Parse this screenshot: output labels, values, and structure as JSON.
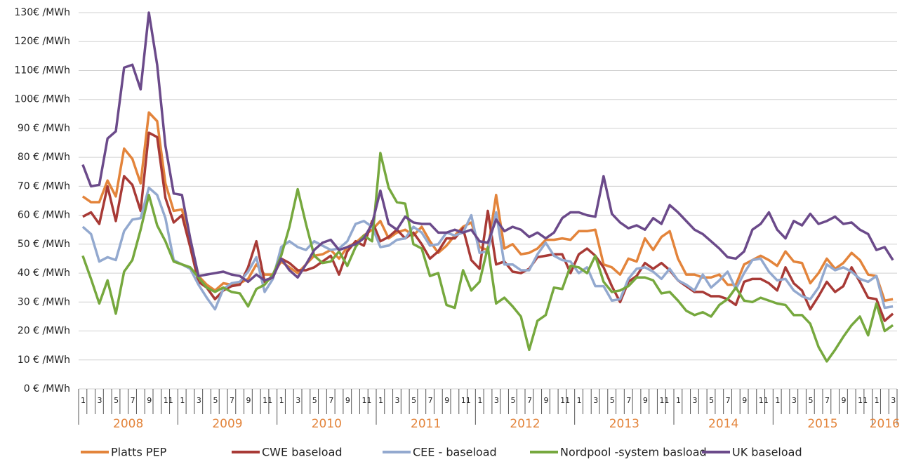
{
  "chart_data": {
    "type": "line",
    "categories": [
      "1",
      null,
      "3",
      null,
      "5",
      null,
      "7",
      null,
      "9",
      null,
      "11",
      null,
      "1",
      null,
      "3",
      null,
      "5",
      null,
      "7",
      null,
      "9",
      null,
      "11",
      null,
      "1",
      null,
      "3",
      null,
      "5",
      null,
      "7",
      null,
      "9",
      null,
      "11",
      null,
      "1",
      null,
      "3",
      null,
      "5",
      null,
      "7",
      null,
      "9",
      null,
      "11",
      null,
      "1",
      null,
      "3",
      null,
      "5",
      null,
      "7",
      null,
      "9",
      null,
      "11",
      null,
      "1",
      null,
      "3",
      null,
      "5",
      null,
      "7",
      null,
      "9",
      null,
      "11",
      null,
      "1",
      null,
      "3",
      null,
      "5",
      null,
      "7",
      null,
      "9",
      null,
      "11",
      null,
      "1",
      null,
      "3",
      null,
      "5",
      null,
      "7",
      null,
      "9",
      null,
      "11",
      null,
      "1",
      null,
      "3"
    ],
    "years": [
      "2008",
      "2009",
      "2010",
      "2011",
      "2012",
      "2013",
      "2014",
      "2015",
      "2016"
    ],
    "ylim": [
      0,
      130
    ],
    "yticks": [
      {
        "value": 0,
        "label": "0 € /MWh"
      },
      {
        "value": 10,
        "label": "10 € /MWh"
      },
      {
        "value": 20,
        "label": "20 € /MWh"
      },
      {
        "value": 30,
        "label": "30 € /MWh"
      },
      {
        "value": 40,
        "label": "40 € /MWh"
      },
      {
        "value": 50,
        "label": "50 € /MWh"
      },
      {
        "value": 60,
        "label": "60 € /MWh"
      },
      {
        "value": 70,
        "label": "70 € /MWh"
      },
      {
        "value": 80,
        "label": "80 € /MWh"
      },
      {
        "value": 90,
        "label": "90 € /MWh"
      },
      {
        "value": 100,
        "label": "100€ /MWh"
      },
      {
        "value": 110,
        "label": "110€ /MWh"
      },
      {
        "value": 120,
        "label": "120€ /MWh"
      },
      {
        "value": 130,
        "label": "130€ /MWh"
      }
    ],
    "grid": true,
    "legend": "bottom",
    "series": [
      {
        "name": "Platts PEP",
        "color": "#e3843b",
        "values": [
          66.5,
          64.5,
          64.5,
          72,
          66.5,
          83,
          79.5,
          71,
          95.5,
          92.5,
          71,
          61.5,
          62,
          51,
          39,
          36,
          34,
          36.5,
          36,
          36.5,
          38,
          43,
          39.5,
          39.5,
          44,
          42,
          40,
          43,
          46,
          46.5,
          48,
          45,
          49,
          50.5,
          53,
          55,
          58,
          52,
          54,
          55,
          53,
          56,
          51,
          47,
          49.5,
          53,
          56,
          57.5,
          49,
          48,
          67,
          48.5,
          50,
          46.5,
          47,
          48.5,
          51.5,
          51.5,
          52,
          51.5,
          54.5,
          54.5,
          55,
          43,
          42,
          39.5,
          45,
          44,
          52,
          48,
          52.5,
          54.5,
          45,
          39.5,
          39.5,
          38.5,
          38.5,
          39.5,
          36,
          36,
          43,
          44.5,
          46,
          44.5,
          42.5,
          47.5,
          44,
          43.5,
          36.5,
          40,
          45,
          41.5,
          43.5,
          47,
          44.5,
          39.5,
          39,
          30.5,
          31
        ]
      },
      {
        "name": "CWE baseload",
        "color": "#a83a36",
        "values": [
          59.5,
          61,
          57,
          70,
          58,
          73.5,
          70.5,
          61.5,
          88.5,
          87,
          66,
          57.5,
          60,
          49,
          37,
          35,
          31,
          34,
          35.5,
          36,
          42,
          51,
          37,
          38.5,
          45,
          43.5,
          41,
          41,
          42,
          44,
          46,
          39.5,
          47.5,
          51,
          49.5,
          58,
          51,
          52.5,
          55,
          52,
          54,
          50,
          45,
          47.5,
          52,
          52,
          55.5,
          44.5,
          41.5,
          61.5,
          43,
          44,
          40.5,
          40,
          41.5,
          45.5,
          46,
          46.5,
          46.5,
          40,
          46.5,
          48.5,
          46,
          42,
          35.5,
          30,
          37,
          39,
          43.5,
          41.5,
          43.5,
          41,
          37.5,
          35.5,
          33.5,
          33.5,
          32,
          32,
          31,
          29,
          37,
          38,
          38,
          36.5,
          34,
          42,
          36.5,
          34,
          27.5,
          32,
          37,
          33.5,
          35.5,
          42,
          37,
          31.5,
          31,
          23.5,
          26
        ]
      },
      {
        "name": "CEE - baseload",
        "color": "#93a9cf",
        "values": [
          56,
          53.5,
          44,
          45.5,
          44.5,
          54.5,
          58.5,
          59,
          69.5,
          67,
          59,
          44.5,
          43,
          41.5,
          36,
          31.5,
          27.5,
          34.5,
          36.5,
          37,
          40.5,
          45.5,
          33.5,
          38,
          49,
          51,
          49,
          48,
          51,
          49.5,
          48,
          48.5,
          51,
          57,
          58,
          56,
          49,
          49.5,
          51.5,
          52,
          56,
          54,
          49.5,
          50,
          54,
          53,
          54,
          60,
          47,
          47.5,
          61,
          43,
          43,
          41,
          41,
          46.5,
          50.5,
          46,
          44.5,
          44,
          40,
          42,
          35.5,
          35.5,
          30.5,
          31,
          38,
          41.5,
          42,
          40.5,
          38,
          41.5,
          37.5,
          36,
          34,
          39.5,
          35,
          37.5,
          40.5,
          34.5,
          40,
          44.5,
          45,
          40.5,
          37.5,
          38,
          34,
          32,
          31,
          35,
          43,
          41,
          42,
          40.5,
          38,
          37,
          39,
          28,
          28.5
        ]
      },
      {
        "name": "Nordpool -system basload",
        "color": "#76a83e",
        "values": [
          46,
          38,
          29.5,
          37.5,
          26,
          40.5,
          44.5,
          55,
          67,
          56.5,
          51,
          44,
          43,
          42,
          38.5,
          35,
          33.5,
          35,
          33.5,
          33,
          28.5,
          34.5,
          36,
          39.5,
          46,
          56,
          69,
          57,
          46,
          43.5,
          44,
          47.5,
          42.5,
          49,
          53,
          51,
          81.5,
          69.5,
          64.5,
          64,
          50,
          48.5,
          39,
          40,
          29,
          28,
          41,
          34,
          37,
          49,
          29.5,
          31.5,
          28.5,
          25,
          13.5,
          23.5,
          25.5,
          35,
          34.5,
          42.5,
          42,
          40,
          46,
          37,
          33.5,
          34,
          35.5,
          38.5,
          38.5,
          37.5,
          33,
          33.5,
          30.5,
          27,
          25.5,
          26.5,
          25,
          29,
          31,
          35,
          30.5,
          30,
          31.5,
          30.5,
          29.5,
          29,
          25.5,
          25.5,
          22.5,
          14.5,
          9.5,
          13.5,
          18,
          22,
          25,
          18.5,
          29.5,
          20,
          22
        ]
      },
      {
        "name": "UK baseload",
        "color": "#6b4a8a",
        "values": [
          77.5,
          70,
          70.5,
          86.5,
          89,
          111,
          112,
          103.5,
          130,
          112,
          84,
          67.5,
          67,
          52,
          39,
          39.5,
          40,
          40.5,
          39.5,
          39,
          37,
          39.5,
          37.5,
          38.5,
          45,
          41,
          38.5,
          43,
          48,
          50.5,
          51.5,
          48,
          49,
          50,
          52,
          57,
          68.5,
          57,
          55,
          59.5,
          57.5,
          57,
          57,
          54,
          54,
          55,
          54,
          55,
          51,
          50.5,
          58.5,
          54.5,
          56,
          55,
          52.5,
          54,
          52,
          54,
          59,
          61,
          61,
          60,
          59.5,
          73.5,
          60.5,
          57.5,
          55.5,
          56.5,
          55,
          59,
          57,
          63.5,
          61,
          58,
          55,
          53.5,
          51,
          48.5,
          45.5,
          45,
          47.5,
          55,
          57,
          61,
          55,
          52,
          58,
          56.5,
          60.5,
          57,
          58,
          59.5,
          57,
          57.5,
          55,
          53.5,
          48,
          49,
          44.5
        ]
      }
    ]
  }
}
